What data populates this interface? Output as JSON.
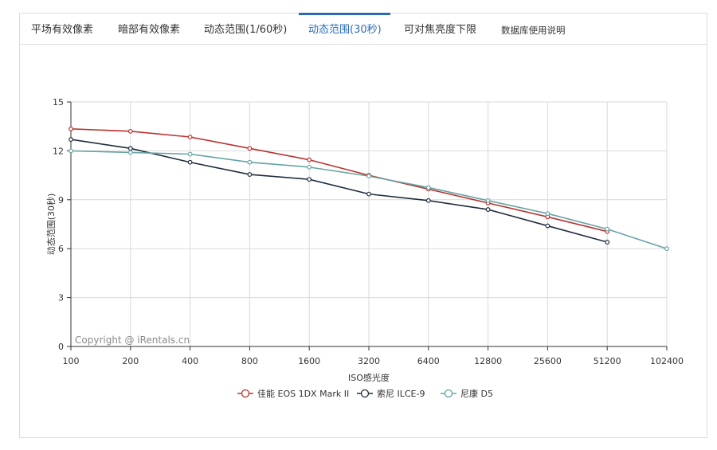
{
  "tabs": [
    {
      "label": "平场有效像素",
      "active": false
    },
    {
      "label": "暗部有效像素",
      "active": false
    },
    {
      "label": "动态范围(1/60秒)",
      "active": false
    },
    {
      "label": "动态范围(30秒)",
      "active": true
    },
    {
      "label": "可对焦亮度下限",
      "active": false
    },
    {
      "label": "数据库使用说明",
      "active": false
    }
  ],
  "colors": {
    "accent": "#2a6bb8"
  },
  "chart_data": {
    "type": "line",
    "title": "",
    "xlabel": "ISO感光度",
    "ylabel": "动态范围(30秒)",
    "categories": [
      "100",
      "200",
      "400",
      "800",
      "1600",
      "3200",
      "6400",
      "12800",
      "25600",
      "51200",
      "102400"
    ],
    "ylim": [
      0,
      15
    ],
    "yticks": [
      "0",
      "3",
      "6",
      "9",
      "12",
      "15"
    ],
    "grid": true,
    "legend_position": "bottom",
    "watermark": "Copyright @ iRentals.cn",
    "series": [
      {
        "name": "佳能 EOS 1DX Mark II",
        "color": "#b9322f",
        "values": [
          13.35,
          13.2,
          12.85,
          12.15,
          11.45,
          10.5,
          9.65,
          8.8,
          7.95,
          7.05,
          null
        ]
      },
      {
        "name": "索尼 ILCE-9",
        "color": "#1f2d3d",
        "values": [
          12.7,
          12.15,
          11.3,
          10.55,
          10.25,
          9.35,
          8.95,
          8.4,
          7.4,
          6.4,
          null
        ]
      },
      {
        "name": "尼康 D5",
        "color": "#67a3a3",
        "values": [
          12.0,
          11.9,
          11.8,
          11.3,
          11.0,
          10.45,
          9.75,
          8.95,
          8.15,
          7.2,
          6.0
        ]
      }
    ]
  }
}
